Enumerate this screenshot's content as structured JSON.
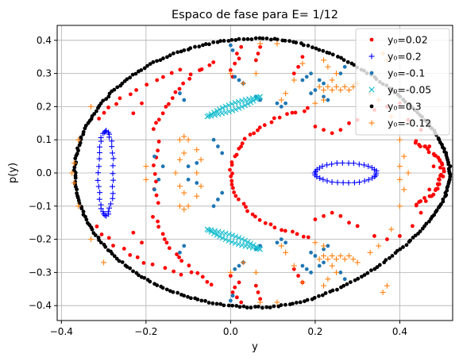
{
  "chart_data": {
    "type": "scatter",
    "title": "Espaco de fase para E= 1/12",
    "xlabel": "y",
    "ylabel": "p(y)",
    "xlim": [
      -0.41,
      0.525
    ],
    "ylim": [
      -0.445,
      0.445
    ],
    "xticks": [
      -0.4,
      -0.2,
      0.0,
      0.2,
      0.4
    ],
    "xtick_labels": [
      "−0.4",
      "−0.2",
      "0.0",
      "0.2",
      "0.4"
    ],
    "yticks": [
      -0.4,
      -0.3,
      -0.2,
      -0.1,
      0.0,
      0.1,
      0.2,
      0.3,
      0.4
    ],
    "ytick_labels": [
      "−0.4",
      "−0.3",
      "−0.2",
      "−0.1",
      "0.0",
      "0.1",
      "0.2",
      "0.3",
      "0.4"
    ],
    "grid": true,
    "legend": {
      "placement": "top-right",
      "entries": [
        {
          "label": "y₀=0.02",
          "color": "#ff0000",
          "marker": "dot"
        },
        {
          "label": "y₀=0.2",
          "color": "#0000ff",
          "marker": "plus"
        },
        {
          "label": "y₀=-0.1",
          "color": "#1f77b4",
          "marker": "dot"
        },
        {
          "label": "y₀=-0.05",
          "color": "#17becf",
          "marker": "x"
        },
        {
          "label": "y₀=0.3",
          "color": "#000000",
          "marker": "dot"
        },
        {
          "label": "y₀=-0.12",
          "color": "#ff7f0e",
          "marker": "plus"
        }
      ]
    },
    "series": [
      {
        "color": "#ff0000",
        "marker": "dot",
        "curves": [
          {
            "kind": "arc",
            "cx": 0.25,
            "cy": 0.0,
            "rx": 0.25,
            "ry": 0.2,
            "t0": 105,
            "t1": 255,
            "n": 45,
            "jitter": 0.004
          },
          {
            "kind": "arc",
            "cx": -0.05,
            "cy": 0.0,
            "rx": 0.55,
            "ry": 0.21,
            "t0": -28,
            "t1": 28,
            "n": 40,
            "jitter": 0.006
          },
          {
            "kind": "arc",
            "cx": 0.1,
            "cy": 0.0,
            "rx": 0.3,
            "ry": 0.38,
            "t0": 118,
            "t1": 160,
            "n": 16,
            "jitter": 0.005
          },
          {
            "kind": "arc",
            "cx": 0.1,
            "cy": 0.0,
            "rx": 0.3,
            "ry": 0.38,
            "t0": 200,
            "t1": 242,
            "n": 16,
            "jitter": 0.005
          },
          {
            "kind": "arc",
            "cx": 0.12,
            "cy": 0.0,
            "rx": 0.3,
            "ry": 0.36,
            "t0": 165,
            "t1": 195,
            "n": 9,
            "jitter": 0.004
          },
          {
            "kind": "arc",
            "cx": 0.04,
            "cy": 0.0,
            "rx": 0.41,
            "ry": 0.33,
            "t0": 112,
            "t1": 150,
            "n": 12,
            "jitter": 0.006
          },
          {
            "kind": "arc",
            "cx": 0.04,
            "cy": 0.0,
            "rx": 0.41,
            "ry": 0.33,
            "t0": 210,
            "t1": 248,
            "n": 12,
            "jitter": 0.006
          }
        ],
        "points": [
          [
            0.02,
            0.345
          ],
          [
            0.01,
            0.33
          ],
          [
            0.0,
            0.31
          ],
          [
            0.005,
            0.29
          ],
          [
            0.015,
            0.36
          ],
          [
            0.025,
            0.38
          ],
          [
            0.02,
            -0.33
          ],
          [
            0.01,
            -0.345
          ],
          [
            0.0,
            -0.31
          ],
          [
            0.005,
            -0.36
          ],
          [
            0.015,
            -0.375
          ],
          [
            0.025,
            -0.39
          ],
          [
            0.07,
            0.38
          ],
          [
            0.065,
            0.36
          ],
          [
            0.06,
            0.34
          ],
          [
            0.07,
            -0.38
          ],
          [
            0.065,
            -0.36
          ],
          [
            0.06,
            -0.34
          ],
          [
            0.17,
            0.35
          ],
          [
            0.16,
            0.32
          ],
          [
            0.15,
            0.3
          ],
          [
            0.17,
            -0.33
          ],
          [
            0.16,
            -0.31
          ],
          [
            0.15,
            -0.29
          ],
          [
            0.2,
            0.14
          ],
          [
            0.22,
            0.13
          ],
          [
            0.24,
            0.12
          ],
          [
            0.26,
            0.13
          ],
          [
            0.28,
            0.15
          ],
          [
            0.3,
            0.16
          ],
          [
            0.2,
            -0.14
          ],
          [
            0.22,
            -0.13
          ],
          [
            0.24,
            -0.12
          ],
          [
            0.26,
            -0.13
          ],
          [
            0.28,
            -0.15
          ],
          [
            0.3,
            -0.16
          ],
          [
            0.34,
            0.19
          ],
          [
            0.37,
            0.2
          ],
          [
            0.4,
            0.21
          ],
          [
            0.34,
            -0.19
          ],
          [
            0.37,
            -0.2
          ],
          [
            0.4,
            -0.19
          ],
          [
            0.42,
            0.16
          ],
          [
            0.45,
            0.13
          ],
          [
            0.47,
            0.08
          ],
          [
            0.48,
            0.02
          ],
          [
            0.47,
            -0.05
          ],
          [
            0.45,
            -0.12
          ],
          [
            0.43,
            -0.16
          ],
          [
            -0.21,
            0.21
          ],
          [
            -0.23,
            0.18
          ],
          [
            -0.21,
            -0.21
          ],
          [
            -0.23,
            -0.18
          ]
        ]
      },
      {
        "color": "#0000ff",
        "marker": "plus",
        "curves": [
          {
            "kind": "arc",
            "cx": -0.295,
            "cy": 0.0,
            "rx": 0.018,
            "ry": 0.128,
            "t0": 0,
            "t1": 360,
            "n": 38,
            "jitter": 0.002
          },
          {
            "kind": "arc",
            "cx": 0.272,
            "cy": 0.0,
            "rx": 0.073,
            "ry": 0.03,
            "t0": 0,
            "t1": 360,
            "n": 34,
            "jitter": 0.001
          }
        ],
        "points": []
      },
      {
        "color": "#1f77b4",
        "marker": "dot",
        "curves": [],
        "points": [
          [
            0.0,
            0.385
          ],
          [
            0.0,
            -0.385
          ],
          [
            0.005,
            0.37
          ],
          [
            0.005,
            -0.37
          ],
          [
            -0.02,
            0.06
          ],
          [
            -0.03,
            0.08
          ],
          [
            -0.04,
            0.1
          ],
          [
            -0.02,
            -0.06
          ],
          [
            -0.03,
            -0.08
          ],
          [
            -0.04,
            -0.1
          ],
          [
            -0.1,
            0.02
          ],
          [
            -0.08,
            0.03
          ],
          [
            -0.1,
            -0.02
          ],
          [
            -0.08,
            -0.03
          ],
          [
            0.01,
            0.29
          ],
          [
            0.02,
            0.28
          ],
          [
            0.03,
            0.27
          ],
          [
            0.01,
            -0.29
          ],
          [
            0.02,
            -0.28
          ],
          [
            0.03,
            -0.27
          ],
          [
            0.06,
            0.23
          ],
          [
            0.07,
            0.22
          ],
          [
            0.06,
            -0.23
          ],
          [
            0.07,
            -0.22
          ],
          [
            0.11,
            0.21
          ],
          [
            0.12,
            0.2
          ],
          [
            0.13,
            0.21
          ],
          [
            0.11,
            -0.21
          ],
          [
            0.12,
            -0.2
          ],
          [
            0.13,
            -0.21
          ],
          [
            0.17,
            0.28
          ],
          [
            0.18,
            0.29
          ],
          [
            0.19,
            0.3
          ],
          [
            0.17,
            -0.28
          ],
          [
            0.18,
            -0.29
          ],
          [
            0.19,
            -0.3
          ],
          [
            0.21,
            0.28
          ],
          [
            0.22,
            0.27
          ],
          [
            0.21,
            -0.28
          ],
          [
            0.22,
            -0.27
          ],
          [
            0.22,
            0.23
          ],
          [
            0.23,
            0.22
          ],
          [
            0.22,
            -0.23
          ],
          [
            0.23,
            -0.22
          ],
          [
            0.19,
            0.24
          ],
          [
            0.2,
            0.25
          ],
          [
            0.19,
            -0.24
          ],
          [
            0.2,
            -0.25
          ],
          [
            -0.11,
            0.22
          ],
          [
            -0.12,
            0.24
          ],
          [
            -0.11,
            -0.22
          ],
          [
            -0.12,
            -0.24
          ],
          [
            0.26,
            0.3
          ],
          [
            0.27,
            0.32
          ],
          [
            0.26,
            -0.3
          ],
          [
            0.27,
            -0.32
          ],
          [
            -0.16,
            0.02
          ],
          [
            -0.17,
            -0.02
          ],
          [
            -0.18,
            0.05
          ],
          [
            -0.18,
            -0.05
          ]
        ]
      },
      {
        "color": "#17becf",
        "marker": "x",
        "curves": [
          {
            "kind": "band",
            "x0": -0.055,
            "y0": 0.17,
            "x1": 0.07,
            "y1": 0.23,
            "w": 0.02,
            "n": 34
          },
          {
            "kind": "band",
            "x0": -0.055,
            "y0": -0.17,
            "x1": 0.07,
            "y1": -0.23,
            "w": 0.02,
            "n": 34
          }
        ],
        "points": []
      },
      {
        "color": "#000000",
        "marker": "dot",
        "curves": [
          {
            "kind": "egg",
            "cx": 0.067,
            "cy": 0.0,
            "n": 300
          }
        ],
        "points": []
      },
      {
        "color": "#ff7f0e",
        "marker": "plus",
        "curves": [],
        "points": [
          [
            -0.37,
            0.03
          ],
          [
            -0.375,
            0.0
          ],
          [
            -0.37,
            -0.03
          ],
          [
            -0.36,
            0.1
          ],
          [
            -0.36,
            -0.1
          ],
          [
            -0.33,
            0.2
          ],
          [
            -0.33,
            -0.2
          ],
          [
            -0.3,
            -0.27
          ],
          [
            -0.11,
            0.11
          ],
          [
            -0.12,
            0.1
          ],
          [
            -0.1,
            0.1
          ],
          [
            -0.11,
            0.06
          ],
          [
            -0.12,
            0.04
          ],
          [
            -0.11,
            -0.06
          ],
          [
            -0.12,
            -0.04
          ],
          [
            -0.11,
            -0.11
          ],
          [
            -0.12,
            -0.1
          ],
          [
            -0.1,
            -0.1
          ],
          [
            -0.13,
            0.0
          ],
          [
            -0.08,
            0.0
          ],
          [
            -0.07,
            -0.04
          ],
          [
            -0.07,
            0.04
          ],
          [
            -0.08,
            0.07
          ],
          [
            -0.08,
            -0.07
          ],
          [
            0.0,
            0.3
          ],
          [
            0.03,
            0.27
          ],
          [
            0.06,
            0.3
          ],
          [
            0.03,
            -0.27
          ],
          [
            0.06,
            -0.3
          ],
          [
            0.0,
            -0.3
          ],
          [
            0.12,
            0.22
          ],
          [
            0.13,
            0.24
          ],
          [
            0.12,
            -0.22
          ],
          [
            0.13,
            -0.24
          ],
          [
            0.15,
            0.28
          ],
          [
            0.15,
            -0.28
          ],
          [
            0.17,
            0.33
          ],
          [
            0.17,
            -0.33
          ],
          [
            0.2,
            0.21
          ],
          [
            0.22,
            0.22
          ],
          [
            0.2,
            -0.21
          ],
          [
            0.22,
            -0.22
          ],
          [
            0.21,
            0.26
          ],
          [
            0.22,
            0.25
          ],
          [
            0.23,
            0.26
          ],
          [
            0.24,
            0.25
          ],
          [
            0.25,
            0.26
          ],
          [
            0.26,
            0.25
          ],
          [
            0.27,
            0.26
          ],
          [
            0.28,
            0.25
          ],
          [
            0.29,
            0.26
          ],
          [
            0.3,
            0.27
          ],
          [
            0.21,
            -0.26
          ],
          [
            0.22,
            -0.25
          ],
          [
            0.23,
            -0.26
          ],
          [
            0.24,
            -0.25
          ],
          [
            0.25,
            -0.26
          ],
          [
            0.26,
            -0.25
          ],
          [
            0.27,
            -0.26
          ],
          [
            0.28,
            -0.25
          ],
          [
            0.29,
            -0.26
          ],
          [
            0.3,
            -0.27
          ],
          [
            0.24,
            0.28
          ],
          [
            0.25,
            0.3
          ],
          [
            0.24,
            -0.28
          ],
          [
            0.25,
            -0.3
          ],
          [
            0.23,
            0.32
          ],
          [
            0.23,
            -0.32
          ],
          [
            0.22,
            0.34
          ],
          [
            0.22,
            -0.34
          ],
          [
            0.33,
            0.24
          ],
          [
            0.35,
            0.22
          ],
          [
            0.33,
            -0.24
          ],
          [
            0.35,
            -0.22
          ],
          [
            0.38,
            0.17
          ],
          [
            0.38,
            -0.17
          ],
          [
            0.4,
            0.1
          ],
          [
            0.4,
            -0.1
          ],
          [
            0.41,
            0.05
          ],
          [
            0.42,
            0.0
          ],
          [
            0.41,
            -0.05
          ],
          [
            0.4,
            -0.02
          ],
          [
            0.4,
            0.02
          ],
          [
            0.36,
            0.36
          ],
          [
            0.37,
            0.34
          ],
          [
            0.36,
            -0.36
          ],
          [
            0.37,
            -0.34
          ],
          [
            0.11,
            0.39
          ],
          [
            0.11,
            -0.39
          ],
          [
            0.07,
            -0.39
          ],
          [
            0.07,
            0.39
          ],
          [
            -0.2,
            0.02
          ],
          [
            -0.2,
            -0.02
          ]
        ]
      }
    ]
  }
}
